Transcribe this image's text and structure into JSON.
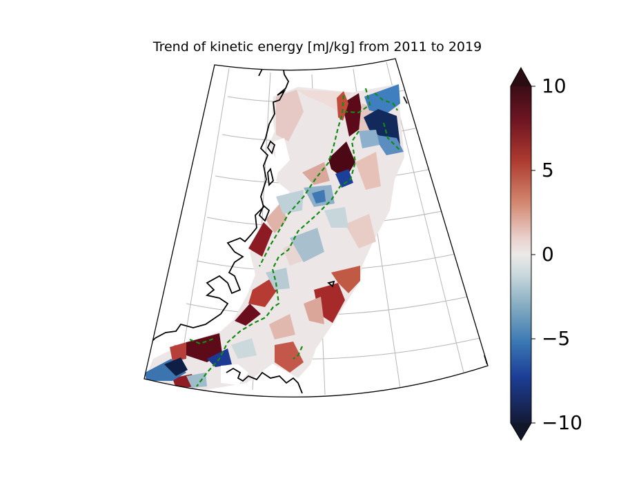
{
  "title": "Trend of kinetic energy [mJ/kg] from 2011 to 2019",
  "colorbar": {
    "min": -10,
    "max": 10,
    "ticks": [
      "10",
      "5",
      "0",
      "−5",
      "−10"
    ],
    "extend": "both",
    "colormap": [
      "#180e22",
      "#5b0f25",
      "#a42a2c",
      "#c9674d",
      "#e2b3a6",
      "#ece7e6",
      "#a9c3cc",
      "#4e86b0",
      "#1f4aa8",
      "#1a2a5e",
      "#111629"
    ]
  },
  "map": {
    "coastline_color": "#000000",
    "boundary_line_color": "#118b11",
    "boundary_line_style": "dashed",
    "gridlines": true
  }
}
